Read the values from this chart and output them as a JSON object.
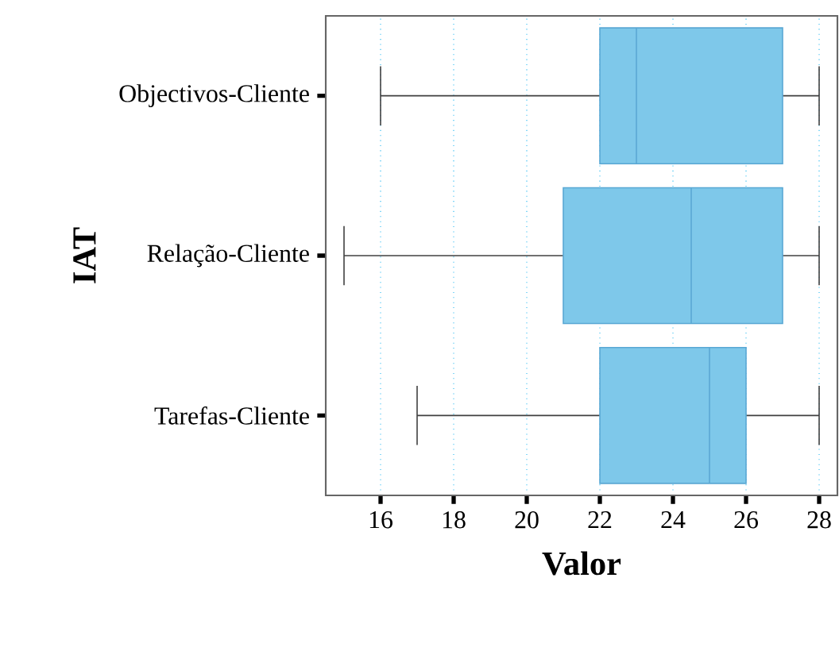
{
  "chart_data": {
    "type": "box",
    "orientation": "horizontal",
    "xlabel": "Valor",
    "ylabel": "IAT",
    "categories": [
      "Objectivos-Cliente",
      "Relação-Cliente",
      "Tarefas-Cliente"
    ],
    "boxes": [
      {
        "low": 16,
        "q1": 22,
        "median": 23,
        "q3": 27,
        "high": 28
      },
      {
        "low": 15,
        "q1": 21,
        "median": 24.5,
        "q3": 27,
        "high": 28
      },
      {
        "low": 17,
        "q1": 22,
        "median": 25,
        "q3": 26,
        "high": 28
      }
    ],
    "color": "#7ec8ea",
    "xlim": [
      14.5,
      28.5
    ],
    "xticks": [
      16,
      18,
      20,
      22,
      24,
      26,
      28
    ],
    "grid": "x"
  }
}
